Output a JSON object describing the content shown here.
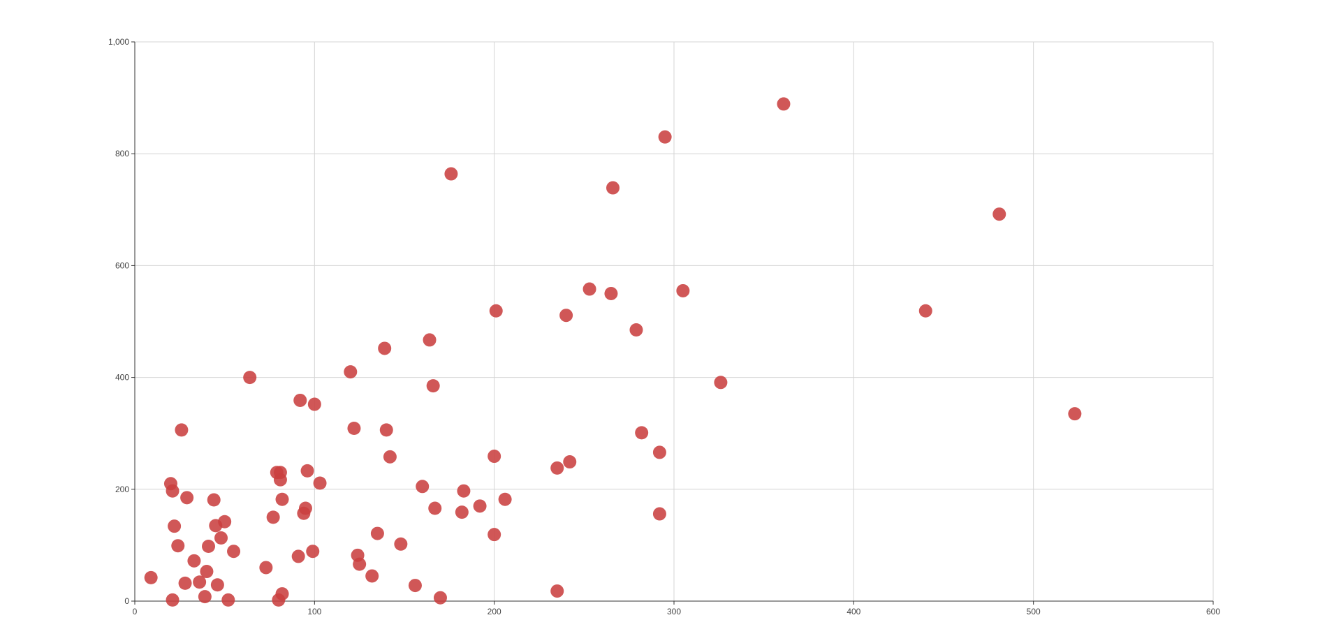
{
  "chart_data": {
    "type": "scatter",
    "title": "",
    "xlabel": "",
    "ylabel": "",
    "xlim": [
      0,
      600
    ],
    "ylim": [
      0,
      1000
    ],
    "x_ticks": [
      0,
      100,
      200,
      300,
      400,
      500,
      600
    ],
    "x_tick_labels": [
      "0",
      "100",
      "200",
      "300",
      "400",
      "500",
      "600"
    ],
    "y_ticks": [
      0,
      200,
      400,
      600,
      800,
      1000
    ],
    "y_tick_labels": [
      "0",
      "200",
      "400",
      "600",
      "800",
      "1,000"
    ],
    "grid": true,
    "marker_color": "#c94040",
    "series": [
      {
        "points": [
          [
            9,
            42
          ],
          [
            20,
            210
          ],
          [
            21,
            197
          ],
          [
            21,
            2
          ],
          [
            22,
            134
          ],
          [
            24,
            99
          ],
          [
            26,
            306
          ],
          [
            28,
            32
          ],
          [
            29,
            185
          ],
          [
            33,
            72
          ],
          [
            36,
            34
          ],
          [
            39,
            8
          ],
          [
            40,
            53
          ],
          [
            41,
            98
          ],
          [
            44,
            181
          ],
          [
            45,
            135
          ],
          [
            46,
            29
          ],
          [
            48,
            113
          ],
          [
            50,
            142
          ],
          [
            52,
            2
          ],
          [
            55,
            89
          ],
          [
            64,
            400
          ],
          [
            73,
            60
          ],
          [
            77,
            150
          ],
          [
            79,
            230
          ],
          [
            80,
            2
          ],
          [
            81,
            230
          ],
          [
            81,
            217
          ],
          [
            82,
            182
          ],
          [
            82,
            13
          ],
          [
            91,
            80
          ],
          [
            92,
            359
          ],
          [
            94,
            157
          ],
          [
            95,
            166
          ],
          [
            96,
            233
          ],
          [
            99,
            89
          ],
          [
            100,
            352
          ],
          [
            103,
            211
          ],
          [
            120,
            410
          ],
          [
            122,
            309
          ],
          [
            124,
            82
          ],
          [
            125,
            66
          ],
          [
            132,
            45
          ],
          [
            135,
            121
          ],
          [
            139,
            452
          ],
          [
            140,
            306
          ],
          [
            142,
            258
          ],
          [
            148,
            102
          ],
          [
            156,
            28
          ],
          [
            160,
            205
          ],
          [
            164,
            467
          ],
          [
            166,
            385
          ],
          [
            167,
            166
          ],
          [
            170,
            6
          ],
          [
            176,
            764
          ],
          [
            182,
            159
          ],
          [
            183,
            197
          ],
          [
            192,
            170
          ],
          [
            200,
            259
          ],
          [
            200,
            119
          ],
          [
            201,
            519
          ],
          [
            206,
            182
          ],
          [
            235,
            238
          ],
          [
            235,
            18
          ],
          [
            240,
            511
          ],
          [
            242,
            249
          ],
          [
            253,
            558
          ],
          [
            265,
            550
          ],
          [
            266,
            739
          ],
          [
            279,
            485
          ],
          [
            282,
            301
          ],
          [
            292,
            266
          ],
          [
            292,
            156
          ],
          [
            295,
            830
          ],
          [
            305,
            555
          ],
          [
            326,
            391
          ],
          [
            361,
            889
          ],
          [
            440,
            519
          ],
          [
            481,
            692
          ],
          [
            523,
            335
          ]
        ]
      }
    ]
  }
}
